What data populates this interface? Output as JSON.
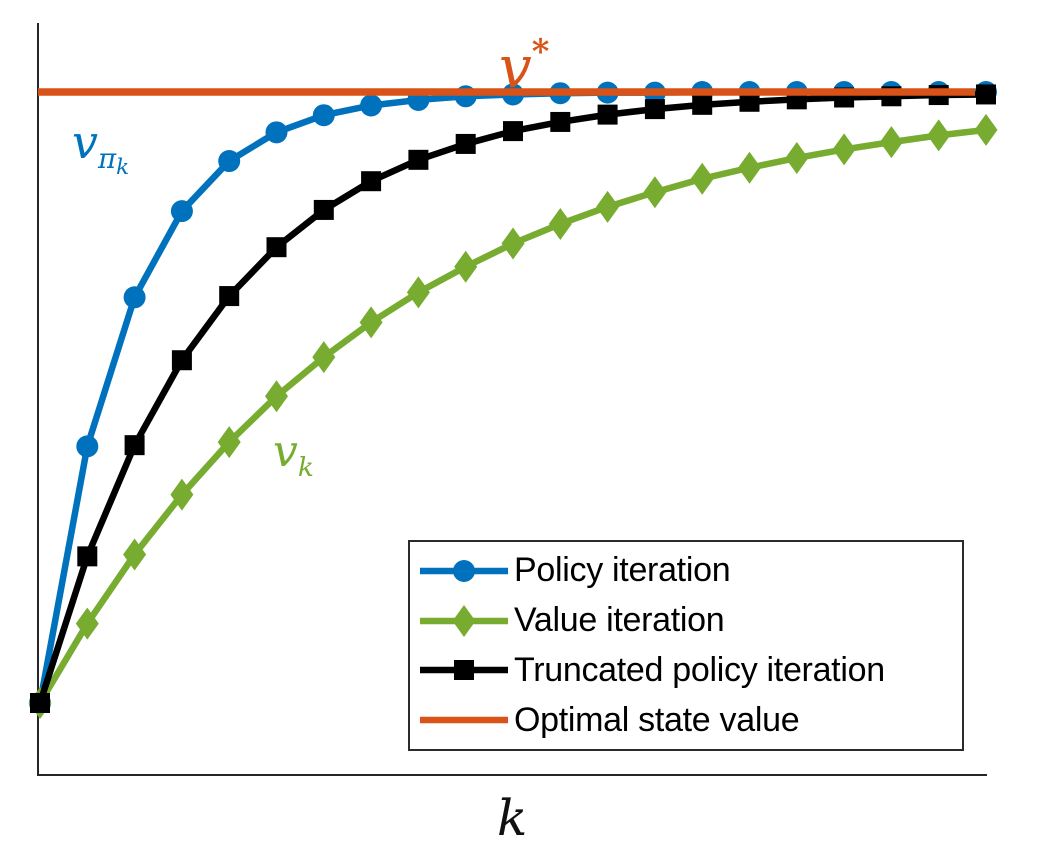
{
  "figure": {
    "background": "#ffffff",
    "axis_color": "#262626"
  },
  "chart_data": {
    "type": "line",
    "title": "",
    "xlabel": "k",
    "ylabel": "",
    "x": [
      0,
      1,
      2,
      3,
      4,
      5,
      6,
      7,
      8,
      9,
      10,
      11,
      12,
      13,
      14,
      15,
      16,
      17,
      18,
      19,
      20
    ],
    "xlim": [
      0,
      20
    ],
    "ylim_normalized": [
      -0.12,
      1.12
    ],
    "grid": false,
    "ticks": "none",
    "axes_box": "left-and-bottom-spines-only",
    "legend_position": "inside-lower-right",
    "series": [
      {
        "name": "Policy iteration",
        "color": "#0072BD",
        "marker": "circle",
        "curve_annotation": "v_pi_k",
        "values": [
          0,
          0.42,
          0.664,
          0.805,
          0.887,
          0.934,
          0.962,
          0.978,
          0.987,
          0.993,
          0.996,
          0.998,
          0.999,
          0.999,
          1,
          1,
          1,
          1,
          1,
          1,
          1
        ]
      },
      {
        "name": "Value iteration",
        "color": "#77AC30",
        "marker": "diamond",
        "curve_annotation": "v_k",
        "values": [
          0,
          0.13,
          0.243,
          0.341,
          0.427,
          0.502,
          0.566,
          0.623,
          0.672,
          0.714,
          0.752,
          0.784,
          0.812,
          0.836,
          0.858,
          0.876,
          0.892,
          0.906,
          0.918,
          0.929,
          0.938
        ]
      },
      {
        "name": "Truncated policy iteration",
        "color": "#000000",
        "marker": "square",
        "values": [
          0,
          0.24,
          0.422,
          0.561,
          0.666,
          0.746,
          0.807,
          0.854,
          0.889,
          0.915,
          0.936,
          0.951,
          0.963,
          0.972,
          0.979,
          0.984,
          0.988,
          0.991,
          0.993,
          0.995,
          0.996
        ]
      },
      {
        "name": "Optimal state value",
        "color": "#D95319",
        "marker": "none",
        "line": "horizontal",
        "constant_value": 1
      }
    ]
  },
  "annotations": {
    "v_star": {
      "base": "v",
      "sup": "*",
      "color": "#D95319"
    },
    "v_pi_k": {
      "base": "v",
      "sub": "π",
      "subsub": "k",
      "color": "#0072BD"
    },
    "v_k": {
      "base": "v",
      "sub": "k",
      "color": "#77AC30"
    }
  }
}
